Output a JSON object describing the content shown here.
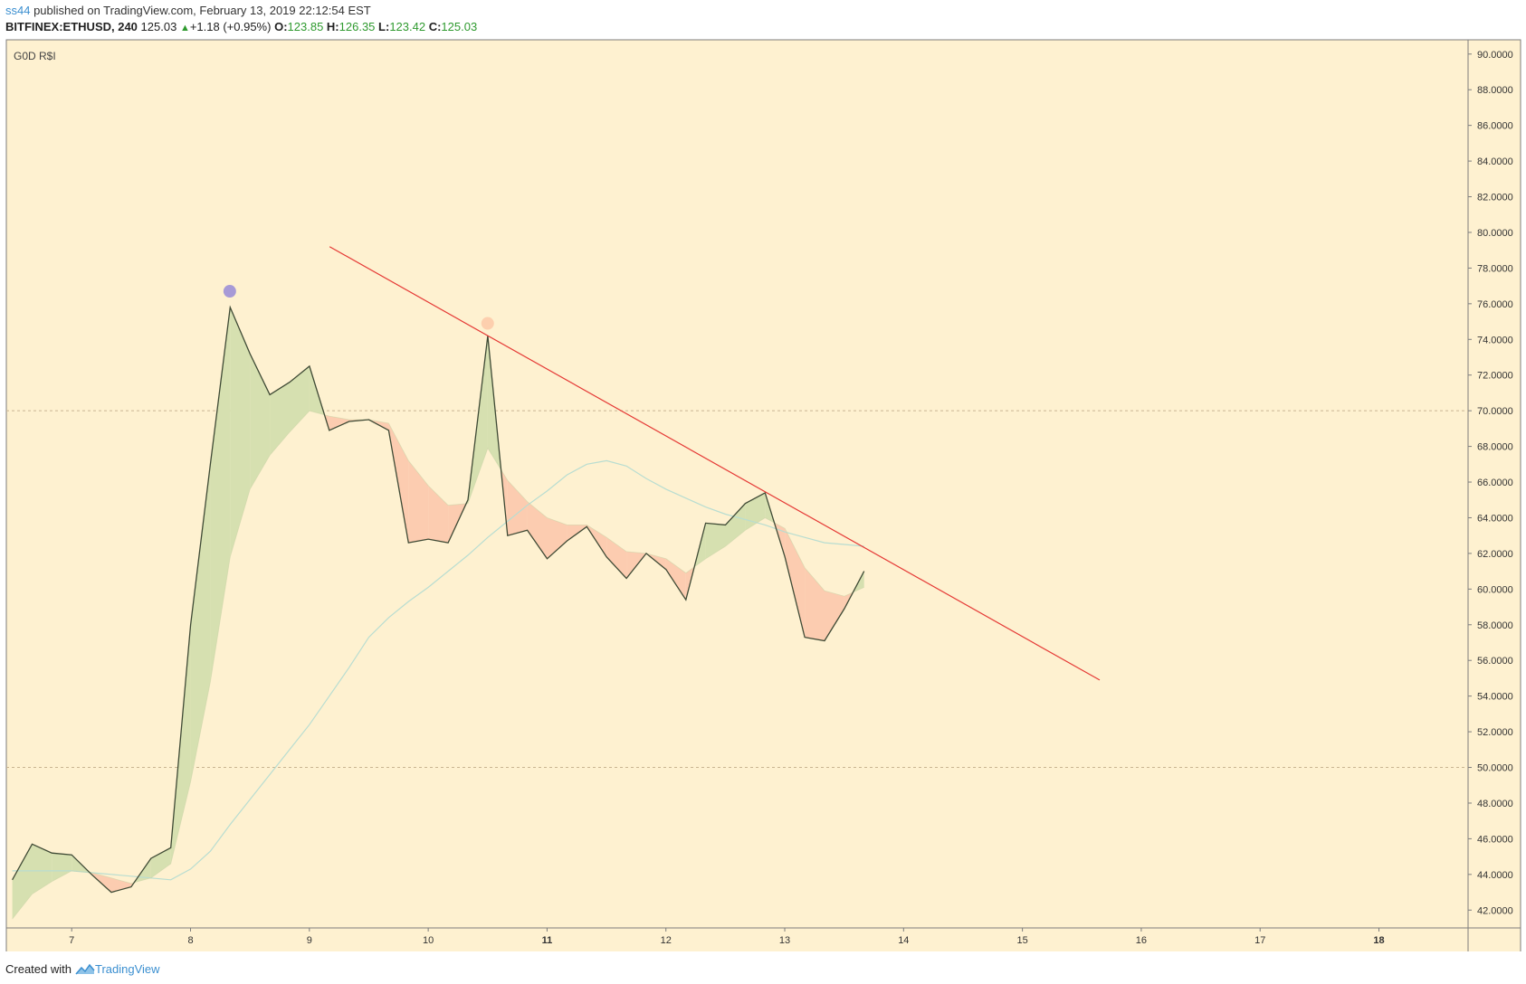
{
  "header": {
    "author": "ss44",
    "published_text": " published on TradingView.com, February 13, 2019 22:12:54 EST",
    "symbol": "BITFINEX:ETHUSD, 240",
    "last": "125.03",
    "change": "+1.18 (+0.95%)",
    "o_label": "O:",
    "o_value": "123.85",
    "h_label": "H:",
    "h_value": "126.35",
    "l_label": "L:",
    "l_value": "123.42",
    "c_label": "C:",
    "c_value": "125.03"
  },
  "footer": {
    "created_with": "Created with",
    "brand": "TradingView"
  },
  "colors": {
    "background": "#fef1d0",
    "rsi_line": "#3f4a35",
    "signal_line": "#b8ddd1",
    "bull_fill": "#d6e0b0",
    "bear_fill": "#fcccb0",
    "trendline": "#e53935",
    "purple_marker": "#a79ad6",
    "orange_marker": "#fdcfae",
    "level_lines": "#c9b592"
  },
  "chart_data": {
    "type": "line",
    "title": "G0D R$I",
    "ylim": [
      41,
      90.8
    ],
    "yticks": [
      "42.0000",
      "44.0000",
      "46.0000",
      "48.0000",
      "50.0000",
      "52.0000",
      "54.0000",
      "56.0000",
      "58.0000",
      "60.0000",
      "62.0000",
      "64.0000",
      "66.0000",
      "68.0000",
      "70.0000",
      "72.0000",
      "74.0000",
      "76.0000",
      "78.0000",
      "80.0000",
      "82.0000",
      "84.0000",
      "86.0000",
      "88.0000",
      "90.0000"
    ],
    "xlim": [
      6.45,
      18.75
    ],
    "xticks": [
      {
        "x": 7,
        "label": "7",
        "bold": false
      },
      {
        "x": 8,
        "label": "8",
        "bold": false
      },
      {
        "x": 9,
        "label": "9",
        "bold": false
      },
      {
        "x": 10,
        "label": "10",
        "bold": false
      },
      {
        "x": 11,
        "label": "11",
        "bold": true
      },
      {
        "x": 12,
        "label": "12",
        "bold": false
      },
      {
        "x": 13,
        "label": "13",
        "bold": false
      },
      {
        "x": 14,
        "label": "14",
        "bold": false
      },
      {
        "x": 15,
        "label": "15",
        "bold": false
      },
      {
        "x": 16,
        "label": "16",
        "bold": false
      },
      {
        "x": 17,
        "label": "17",
        "bold": false
      },
      {
        "x": 18,
        "label": "18",
        "bold": true
      }
    ],
    "levels": [
      70,
      50
    ],
    "x_start": 6.5,
    "x_step": 0.1667,
    "series": [
      {
        "role": "rsi",
        "values": [
          43.7,
          45.7,
          45.2,
          45.1,
          44.0,
          43.0,
          43.3,
          44.9,
          45.5,
          58.0,
          67.0,
          75.8,
          73.2,
          70.9,
          71.6,
          72.5,
          68.9,
          69.4,
          69.5,
          68.9,
          62.6,
          62.8,
          62.6,
          65.0,
          74.2,
          63.0,
          63.3,
          61.7,
          62.7,
          63.5,
          61.8,
          60.6,
          62.0,
          61.1,
          59.4,
          63.7,
          63.6,
          64.8,
          65.4,
          61.8,
          57.3,
          57.1,
          58.9,
          61.0
        ]
      },
      {
        "role": "rsi_fast_ma",
        "values": [
          41.5,
          42.9,
          43.6,
          44.2,
          44.1,
          43.8,
          43.5,
          43.8,
          44.6,
          49.2,
          54.8,
          61.8,
          65.6,
          67.5,
          68.8,
          70.0,
          69.7,
          69.5,
          69.5,
          69.3,
          67.2,
          65.8,
          64.7,
          64.8,
          67.9,
          66.1,
          64.9,
          64.0,
          63.6,
          63.6,
          62.9,
          62.1,
          62.0,
          61.7,
          60.9,
          61.7,
          62.4,
          63.3,
          64.0,
          63.4,
          61.2,
          59.9,
          59.6,
          60.1
        ]
      },
      {
        "role": "rsi_slow_ma",
        "values": [
          44.2,
          44.2,
          44.2,
          44.2,
          44.1,
          44.0,
          43.9,
          43.8,
          43.7,
          44.3,
          45.3,
          46.8,
          48.2,
          49.6,
          51.0,
          52.4,
          54.0,
          55.6,
          57.3,
          58.4,
          59.3,
          60.1,
          61.0,
          61.9,
          62.9,
          63.8,
          64.7,
          65.5,
          66.4,
          67.0,
          67.2,
          66.9,
          66.2,
          65.6,
          65.1,
          64.6,
          64.2,
          63.9,
          63.6,
          63.2,
          62.9,
          62.6,
          62.5,
          62.4
        ]
      }
    ],
    "trendline": {
      "x1": 9.17,
      "y1": 79.2,
      "x2": 15.65,
      "y2": 54.9
    },
    "markers": [
      {
        "x": 8.33,
        "y": 76.7,
        "color": "purple"
      },
      {
        "x": 10.5,
        "y": 74.9,
        "color": "orange"
      }
    ]
  }
}
